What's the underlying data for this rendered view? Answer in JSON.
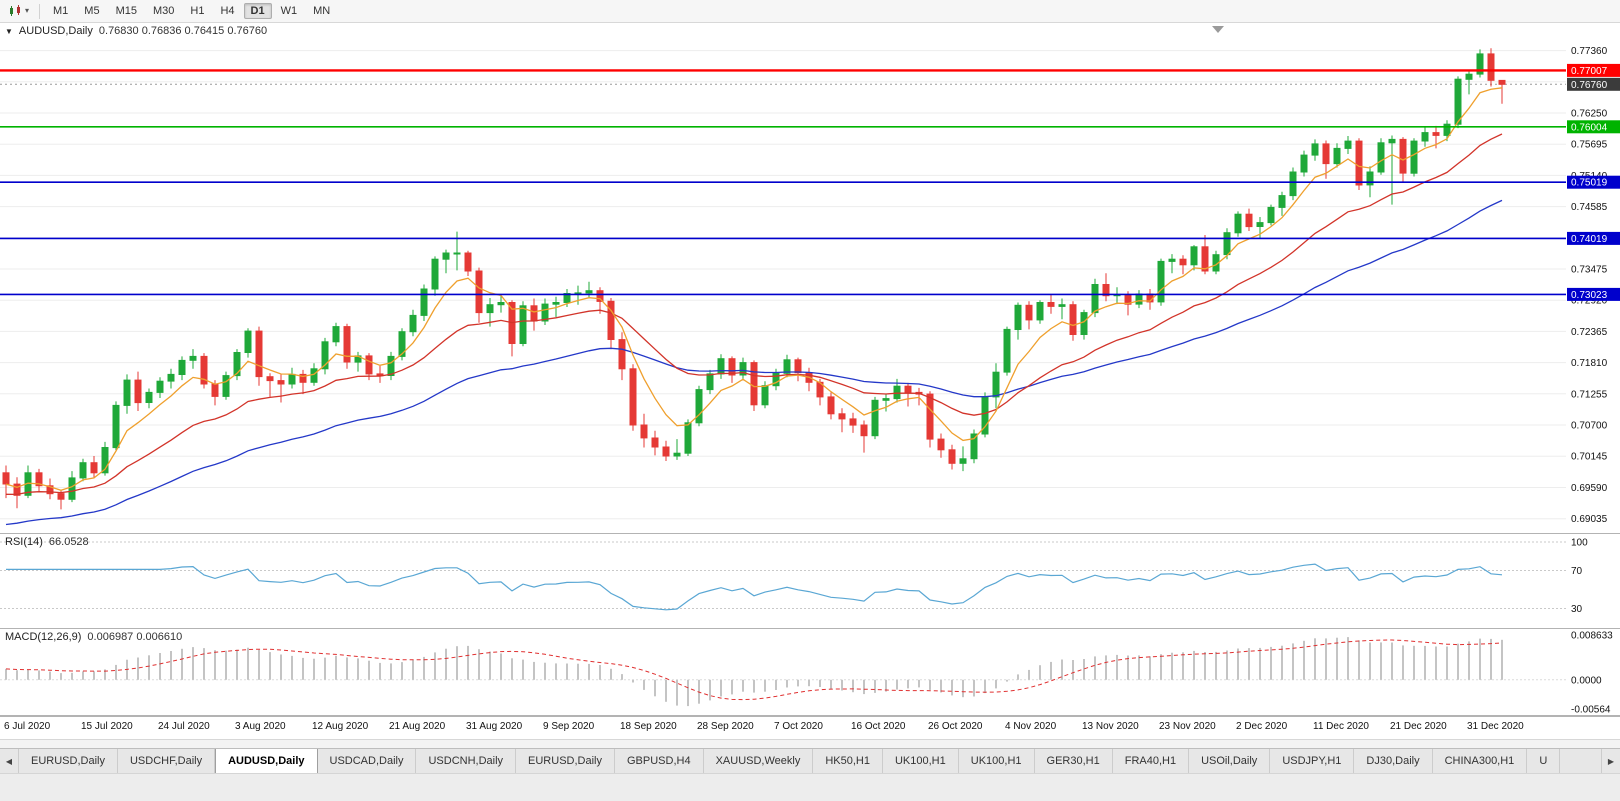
{
  "toolbar": {
    "chart_type_icon": "candlestick-chart-icon",
    "dropdown_caret": "▾",
    "timeframes": [
      "M1",
      "M5",
      "M15",
      "M30",
      "H1",
      "H4",
      "D1",
      "W1",
      "MN"
    ],
    "active": "D1"
  },
  "chart": {
    "collapse_triangle": "▼",
    "title_symbol": "AUDUSD,Daily",
    "ohlc": "0.76830 0.76836 0.76415 0.76760"
  },
  "price_axis": {
    "labels": [
      0.7736,
      0.76805,
      0.7625,
      0.75695,
      0.7514,
      0.74585,
      0.7403,
      0.73475,
      0.7292,
      0.72365,
      0.7181,
      0.71255,
      0.707,
      0.70145,
      0.6959,
      0.69035
    ]
  },
  "hlines": [
    {
      "price": 0.77007,
      "label": "0.77007",
      "color": "#ff0000",
      "width": 2.4
    },
    {
      "price": 0.76004,
      "label": "0.76004",
      "color": "#00b300",
      "width": 1.6
    },
    {
      "price": 0.75019,
      "label": "0.75019",
      "color": "#0000cc",
      "width": 1.6
    },
    {
      "price": 0.74019,
      "label": "0.74019",
      "color": "#0000cc",
      "width": 1.6
    },
    {
      "price": 0.73023,
      "label": "0.73023",
      "color": "#0000cc",
      "width": 1.6
    }
  ],
  "current_price": {
    "price": 0.7676,
    "label": "0.76760",
    "bg": "#3b3b3b"
  },
  "rsi": {
    "label": "RSI(14)",
    "value": "66.0528",
    "period": 14,
    "color": "#5aa7d4",
    "levels": [
      {
        "value": 100,
        "label": "100"
      },
      {
        "value": 70,
        "label": "70"
      },
      {
        "value": 30,
        "label": "30"
      }
    ]
  },
  "macd": {
    "label": "MACD(12,26,9)",
    "values": "0.006987 0.006610",
    "fast": 12,
    "slow": 26,
    "signal": 9,
    "max": 0.008633,
    "min": -0.00564,
    "hist_color": "#c4c4c4",
    "signal_color": "#e03030",
    "scale": [
      {
        "value": 0.008633,
        "label": "0.008633"
      },
      {
        "value": 0,
        "label": "0.0000"
      },
      {
        "value": -0.00564,
        "label": "-0.00564"
      }
    ]
  },
  "tabs": {
    "scroll_left": "◀",
    "scroll_right": "▶",
    "active_index": 2,
    "items": [
      "EURUSD,Daily",
      "USDCHF,Daily",
      "AUDUSD,Daily",
      "USDCAD,Daily",
      "USDCNH,Daily",
      "EURUSD,Daily",
      "GBPUSD,H4",
      "XAUUSD,Weekly",
      "HK50,H1",
      "UK100,H1",
      "UK100,H1",
      "GER30,H1",
      "FRA40,H1",
      "USOil,Daily",
      "USDJPY,H1",
      "DJ30,Daily",
      "CHINA300,H1",
      "U"
    ]
  },
  "chart_data": {
    "type": "candlestick",
    "symbol": "AUDUSD",
    "timeframe": "Daily",
    "price_top": 0.7785,
    "price_bottom": 0.6878,
    "colors": {
      "up": "#1fa839",
      "down": "#e53935"
    },
    "overlays": [
      {
        "name": "ma-slow",
        "period": 46,
        "color": "#2438c8",
        "seed": 0.689
      },
      {
        "name": "ma-medium",
        "period": 20,
        "color": "#d2342a",
        "seed": 0.6945
      },
      {
        "name": "ma-fast",
        "period": 6,
        "color": "#efa02e"
      }
    ],
    "label_every": 7,
    "x_labels": [
      "6 Jul 2020",
      "15 Jul 2020",
      "24 Jul 2020",
      "3 Aug 2020",
      "12 Aug 2020",
      "21 Aug 2020",
      "31 Aug 2020",
      "9 Sep 2020",
      "18 Sep 2020",
      "28 Sep 2020",
      "7 Oct 2020",
      "16 Oct 2020",
      "26 Oct 2020",
      "4 Nov 2020",
      "13 Nov 2020",
      "23 Nov 2020",
      "2 Dec 2020",
      "11 Dec 2020",
      "21 Dec 2020",
      "31 Dec 2020"
    ],
    "candles": [
      [
        0.6985,
        0.6998,
        0.694,
        0.6965
      ],
      [
        0.6965,
        0.6977,
        0.6922,
        0.6945
      ],
      [
        0.6945,
        0.6998,
        0.694,
        0.6985
      ],
      [
        0.6985,
        0.6992,
        0.695,
        0.6962
      ],
      [
        0.6962,
        0.6975,
        0.6938,
        0.6948
      ],
      [
        0.6948,
        0.6955,
        0.692,
        0.6938
      ],
      [
        0.6938,
        0.6988,
        0.6933,
        0.6976
      ],
      [
        0.6976,
        0.701,
        0.697,
        0.7003
      ],
      [
        0.7003,
        0.7015,
        0.6975,
        0.6985
      ],
      [
        0.6985,
        0.704,
        0.698,
        0.703
      ],
      [
        0.703,
        0.7112,
        0.7025,
        0.7105
      ],
      [
        0.7105,
        0.716,
        0.709,
        0.715
      ],
      [
        0.715,
        0.7165,
        0.7095,
        0.711
      ],
      [
        0.711,
        0.7135,
        0.71,
        0.7128
      ],
      [
        0.7128,
        0.7155,
        0.7118,
        0.7148
      ],
      [
        0.7148,
        0.717,
        0.7135,
        0.716
      ],
      [
        0.716,
        0.7192,
        0.715,
        0.7185
      ],
      [
        0.7185,
        0.7205,
        0.717,
        0.7192
      ],
      [
        0.7192,
        0.7198,
        0.7135,
        0.7143
      ],
      [
        0.7143,
        0.715,
        0.7105,
        0.7121
      ],
      [
        0.7121,
        0.7165,
        0.7115,
        0.7158
      ],
      [
        0.7158,
        0.7205,
        0.715,
        0.7199
      ],
      [
        0.7199,
        0.7242,
        0.719,
        0.7237
      ],
      [
        0.7237,
        0.7245,
        0.714,
        0.7156
      ],
      [
        0.7156,
        0.7162,
        0.712,
        0.7149
      ],
      [
        0.7149,
        0.716,
        0.711,
        0.7143
      ],
      [
        0.7143,
        0.7172,
        0.7135,
        0.716
      ],
      [
        0.716,
        0.7168,
        0.7125,
        0.7146
      ],
      [
        0.7146,
        0.718,
        0.714,
        0.717
      ],
      [
        0.717,
        0.7225,
        0.716,
        0.7218
      ],
      [
        0.7218,
        0.7252,
        0.721,
        0.7245
      ],
      [
        0.7245,
        0.725,
        0.717,
        0.7182
      ],
      [
        0.7182,
        0.72,
        0.7165,
        0.7193
      ],
      [
        0.7193,
        0.7198,
        0.715,
        0.7161
      ],
      [
        0.7161,
        0.7175,
        0.7145,
        0.7158
      ],
      [
        0.7158,
        0.72,
        0.715,
        0.7192
      ],
      [
        0.7192,
        0.7242,
        0.7185,
        0.7236
      ],
      [
        0.7236,
        0.7275,
        0.7228,
        0.7265
      ],
      [
        0.7265,
        0.732,
        0.7255,
        0.7312
      ],
      [
        0.7312,
        0.737,
        0.73,
        0.7365
      ],
      [
        0.7365,
        0.7382,
        0.734,
        0.7376
      ],
      [
        0.7376,
        0.7414,
        0.7345,
        0.7376
      ],
      [
        0.7376,
        0.738,
        0.7335,
        0.7344
      ],
      [
        0.7344,
        0.735,
        0.7252,
        0.727
      ],
      [
        0.727,
        0.7296,
        0.7245,
        0.7284
      ],
      [
        0.7284,
        0.73,
        0.727,
        0.7288
      ],
      [
        0.7288,
        0.7292,
        0.7192,
        0.7215
      ],
      [
        0.7215,
        0.729,
        0.721,
        0.7282
      ],
      [
        0.7282,
        0.7295,
        0.7238,
        0.7255
      ],
      [
        0.7255,
        0.7295,
        0.7248,
        0.7285
      ],
      [
        0.7285,
        0.7298,
        0.7262,
        0.7288
      ],
      [
        0.7288,
        0.7312,
        0.728,
        0.7304
      ],
      [
        0.7304,
        0.7318,
        0.7284,
        0.7305
      ],
      [
        0.7305,
        0.7325,
        0.7295,
        0.7309
      ],
      [
        0.7309,
        0.7315,
        0.7268,
        0.729
      ],
      [
        0.729,
        0.7296,
        0.7205,
        0.7222
      ],
      [
        0.7222,
        0.7235,
        0.715,
        0.717
      ],
      [
        0.717,
        0.7178,
        0.706,
        0.707
      ],
      [
        0.707,
        0.709,
        0.703,
        0.7047
      ],
      [
        0.7047,
        0.706,
        0.7016,
        0.7031
      ],
      [
        0.7031,
        0.7042,
        0.7006,
        0.7015
      ],
      [
        0.7015,
        0.7045,
        0.7008,
        0.702
      ],
      [
        0.702,
        0.708,
        0.7015,
        0.7074
      ],
      [
        0.7074,
        0.714,
        0.7068,
        0.7133
      ],
      [
        0.7133,
        0.7168,
        0.7125,
        0.7161
      ],
      [
        0.7161,
        0.7196,
        0.7152,
        0.7188
      ],
      [
        0.7188,
        0.7192,
        0.7145,
        0.7159
      ],
      [
        0.7159,
        0.719,
        0.715,
        0.7181
      ],
      [
        0.7181,
        0.7185,
        0.7095,
        0.7106
      ],
      [
        0.7106,
        0.7148,
        0.71,
        0.714
      ],
      [
        0.714,
        0.717,
        0.7132,
        0.7162
      ],
      [
        0.7162,
        0.7195,
        0.7155,
        0.7186
      ],
      [
        0.7186,
        0.719,
        0.7148,
        0.7163
      ],
      [
        0.7163,
        0.7172,
        0.713,
        0.7146
      ],
      [
        0.7146,
        0.7152,
        0.7105,
        0.712
      ],
      [
        0.712,
        0.7128,
        0.708,
        0.709
      ],
      [
        0.709,
        0.71,
        0.7057,
        0.7081
      ],
      [
        0.7081,
        0.7092,
        0.7056,
        0.707
      ],
      [
        0.707,
        0.7078,
        0.7021,
        0.7051
      ],
      [
        0.7051,
        0.712,
        0.7045,
        0.7114
      ],
      [
        0.7114,
        0.7126,
        0.7094,
        0.7117
      ],
      [
        0.7117,
        0.7152,
        0.711,
        0.7139
      ],
      [
        0.7139,
        0.7145,
        0.7103,
        0.7128
      ],
      [
        0.7128,
        0.7136,
        0.7105,
        0.7125
      ],
      [
        0.7125,
        0.713,
        0.703,
        0.7045
      ],
      [
        0.7045,
        0.7055,
        0.7012,
        0.7026
      ],
      [
        0.7026,
        0.7035,
        0.6991,
        0.7002
      ],
      [
        0.7002,
        0.7032,
        0.6988,
        0.701
      ],
      [
        0.701,
        0.7062,
        0.7002,
        0.7054
      ],
      [
        0.7054,
        0.7128,
        0.7048,
        0.712
      ],
      [
        0.712,
        0.718,
        0.71,
        0.7164
      ],
      [
        0.7164,
        0.7245,
        0.7158,
        0.724
      ],
      [
        0.724,
        0.7288,
        0.7222,
        0.7283
      ],
      [
        0.7283,
        0.729,
        0.724,
        0.7257
      ],
      [
        0.7257,
        0.7292,
        0.725,
        0.7288
      ],
      [
        0.7288,
        0.7302,
        0.7268,
        0.7281
      ],
      [
        0.7281,
        0.7295,
        0.7258,
        0.7284
      ],
      [
        0.7284,
        0.729,
        0.722,
        0.7231
      ],
      [
        0.7231,
        0.7275,
        0.7222,
        0.727
      ],
      [
        0.727,
        0.733,
        0.7262,
        0.732
      ],
      [
        0.732,
        0.734,
        0.729,
        0.73
      ],
      [
        0.73,
        0.7315,
        0.7285,
        0.7302
      ],
      [
        0.7302,
        0.7308,
        0.7265,
        0.7285
      ],
      [
        0.7285,
        0.731,
        0.7278,
        0.7303
      ],
      [
        0.7303,
        0.7312,
        0.7275,
        0.7289
      ],
      [
        0.7289,
        0.7366,
        0.7282,
        0.7361
      ],
      [
        0.7361,
        0.7374,
        0.734,
        0.7365
      ],
      [
        0.7365,
        0.7372,
        0.7338,
        0.7355
      ],
      [
        0.7355,
        0.739,
        0.7345,
        0.7387
      ],
      [
        0.7387,
        0.7408,
        0.7338,
        0.7344
      ],
      [
        0.7344,
        0.738,
        0.7338,
        0.7373
      ],
      [
        0.7373,
        0.742,
        0.7365,
        0.7412
      ],
      [
        0.7412,
        0.745,
        0.7405,
        0.7445
      ],
      [
        0.7445,
        0.7455,
        0.7415,
        0.7423
      ],
      [
        0.7423,
        0.744,
        0.7401,
        0.743
      ],
      [
        0.743,
        0.7462,
        0.7425,
        0.7457
      ],
      [
        0.7457,
        0.7485,
        0.7442,
        0.7478
      ],
      [
        0.7478,
        0.7528,
        0.747,
        0.752
      ],
      [
        0.752,
        0.7558,
        0.7512,
        0.755
      ],
      [
        0.755,
        0.7578,
        0.754,
        0.757
      ],
      [
        0.757,
        0.7576,
        0.7508,
        0.7535
      ],
      [
        0.7535,
        0.7571,
        0.7528,
        0.7562
      ],
      [
        0.7562,
        0.7584,
        0.7552,
        0.7575
      ],
      [
        0.7575,
        0.758,
        0.7488,
        0.7497
      ],
      [
        0.7497,
        0.753,
        0.7475,
        0.752
      ],
      [
        0.752,
        0.758,
        0.7515,
        0.7572
      ],
      [
        0.7572,
        0.7585,
        0.7462,
        0.7578
      ],
      [
        0.7578,
        0.7582,
        0.7502,
        0.7518
      ],
      [
        0.7518,
        0.758,
        0.7512,
        0.7575
      ],
      [
        0.7575,
        0.76,
        0.7565,
        0.759
      ],
      [
        0.759,
        0.7602,
        0.7562,
        0.7585
      ],
      [
        0.7585,
        0.7612,
        0.7575,
        0.7605
      ],
      [
        0.7605,
        0.769,
        0.7598,
        0.7685
      ],
      [
        0.7685,
        0.7702,
        0.7658,
        0.7694
      ],
      [
        0.7694,
        0.7738,
        0.7688,
        0.773
      ],
      [
        0.773,
        0.774,
        0.7672,
        0.7683
      ],
      [
        0.7683,
        0.76836,
        0.76415,
        0.7676
      ]
    ]
  }
}
